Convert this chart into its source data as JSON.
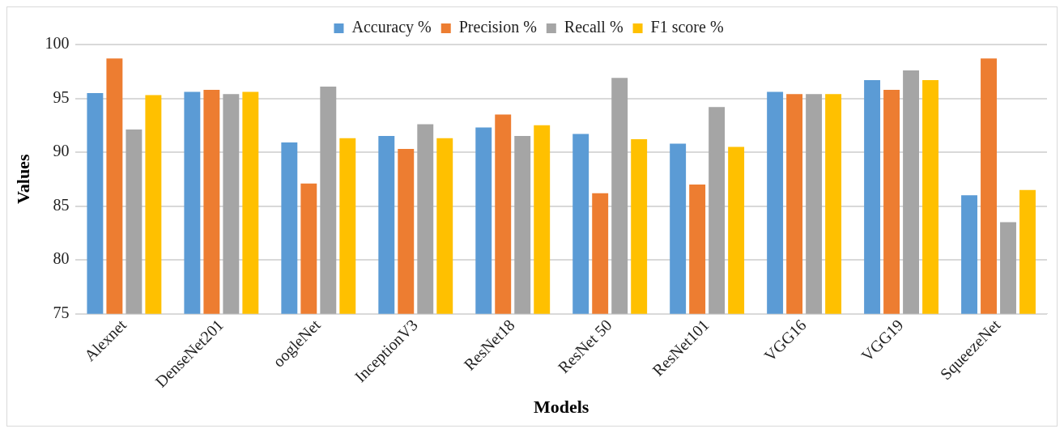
{
  "chart_data": {
    "type": "bar",
    "xlabel": "Models",
    "ylabel": "Values",
    "categories": [
      "Alexnet",
      "DenseNet201",
      "oogleNet",
      "InceptionV3",
      "ResNet18",
      "ResNet 50",
      "ResNet101",
      "VGG16",
      "VGG19",
      "SqueezeNet"
    ],
    "series": [
      {
        "name": "Accuracy %",
        "color": "#5b9bd5",
        "values": [
          95.5,
          95.6,
          90.9,
          91.5,
          92.3,
          91.7,
          90.8,
          95.6,
          96.7,
          86.0
        ]
      },
      {
        "name": "Precision %",
        "color": "#ed7d31",
        "values": [
          98.7,
          95.8,
          87.1,
          90.3,
          93.5,
          86.2,
          87.0,
          95.4,
          95.8,
          98.7
        ]
      },
      {
        "name": "Recall %",
        "color": "#a5a5a5",
        "values": [
          92.1,
          95.4,
          96.1,
          92.6,
          91.5,
          96.9,
          94.2,
          95.4,
          97.6,
          83.5
        ]
      },
      {
        "name": "F1 score %",
        "color": "#ffc000",
        "values": [
          95.3,
          95.6,
          91.3,
          91.3,
          92.5,
          91.2,
          90.5,
          95.4,
          96.7,
          86.5
        ]
      }
    ],
    "ylim": [
      75,
      100
    ],
    "yticks": [
      75,
      80,
      85,
      90,
      95,
      100
    ],
    "grid": "y",
    "legend": "top"
  }
}
